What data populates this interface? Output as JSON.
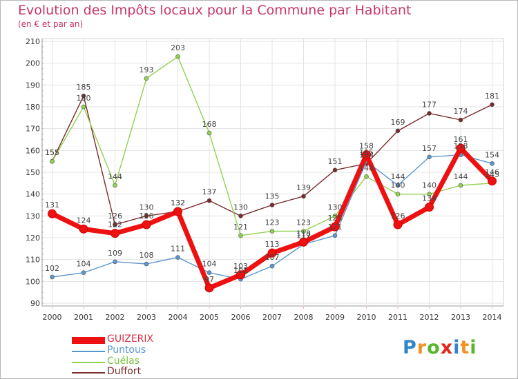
{
  "header": {
    "title": "Evolution des Impôts locaux pour la Commune par Habitant",
    "subtitle": "(en € et par an)"
  },
  "chart_data": {
    "type": "line",
    "title": "Evolution des Impôts locaux pour la Commune par Habitant",
    "subtitle": "(en € et par an)",
    "xlabel": "",
    "ylabel": "",
    "categories": [
      "2000",
      "2001",
      "2002",
      "2003",
      "2004",
      "2005",
      "2006",
      "2007",
      "2008",
      "2009",
      "2010",
      "2011",
      "2012",
      "2013",
      "2014"
    ],
    "ylim": [
      90,
      210
    ],
    "yticks": [
      90,
      100,
      110,
      120,
      130,
      140,
      150,
      160,
      170,
      180,
      190,
      200,
      210
    ],
    "grid": true,
    "legend_position": "bottom-left",
    "series": [
      {
        "name": "GUIZERIX",
        "color": "#ee1111",
        "values": [
          131,
          124,
          122,
          126,
          132,
          97,
          103,
          113,
          118,
          125,
          158,
          126,
          134,
          161,
          146
        ]
      },
      {
        "name": "Puntous",
        "color": "#5b97cf",
        "values": [
          102,
          104,
          109,
          108,
          111,
          104,
          101,
          107,
          117,
          121,
          155,
          144,
          157,
          158,
          154
        ]
      },
      {
        "name": "Cuélas",
        "color": "#92d050",
        "values": [
          155,
          180,
          144,
          193,
          203,
          168,
          121,
          123,
          123,
          130,
          148,
          140,
          140,
          144,
          145
        ]
      },
      {
        "name": "Duffort",
        "color": "#7a2a2a",
        "values": [
          155,
          185,
          126,
          130,
          132,
          137,
          130,
          135,
          139,
          151,
          154,
          169,
          177,
          174,
          181
        ]
      }
    ]
  },
  "logo": {
    "letters": [
      "P",
      "r",
      "o",
      "x",
      "i",
      "t",
      "i"
    ],
    "colors": [
      "#2f86c8",
      "#f39222",
      "#58b52e",
      "#e2251b",
      "#2f86c8",
      "#f39222",
      "#58b52e"
    ]
  }
}
